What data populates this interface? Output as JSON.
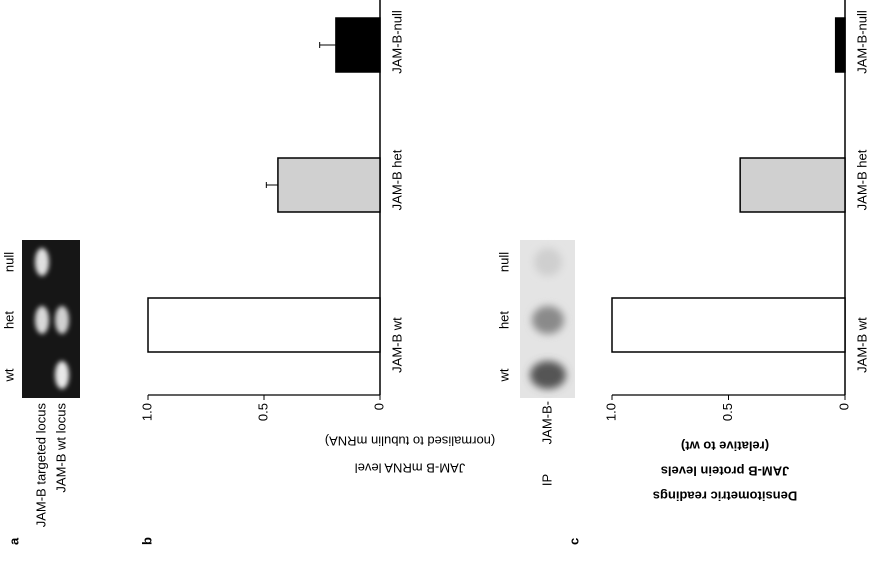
{
  "panel_labels": [
    "a",
    "b",
    "c"
  ],
  "gel_a": {
    "row_labels": [
      "JAM-B targeted locus",
      "JAM-B wt locus"
    ],
    "lane_labels": [
      "wt",
      "het",
      "null"
    ]
  },
  "gel_c": {
    "row_labels": [
      "IP",
      "JAM-B-"
    ],
    "lane_labels": [
      "wt",
      "het",
      "null"
    ]
  },
  "chart_data": [
    {
      "type": "bar",
      "ylabel": [
        "JAM-B mRNA level",
        "(normalised to tubulin mRNA)"
      ],
      "categories": [
        "JAM-B wt",
        "JAM-B het",
        "JAM-B-null"
      ],
      "values": [
        1,
        0.44,
        0.19
      ],
      "errors": [
        null,
        0.05,
        0.07
      ],
      "colors": [
        "#ffffff",
        "#d0d0d0",
        "#000000"
      ],
      "ylim": [
        0,
        1
      ],
      "yticks": [
        0,
        0.5,
        {
          "value": 1,
          "label": "1.0"
        }
      ]
    },
    {
      "type": "bar",
      "ylabel": [
        "Densitometric readings",
        "JAM-B protein levels",
        "(relative to wt)"
      ],
      "categories": [
        "JAM-B wt",
        "JAM-B het",
        "JAM-B-null"
      ],
      "values": [
        1,
        0.45,
        0.04
      ],
      "errors": [
        null,
        null,
        null
      ],
      "colors": [
        "#ffffff",
        "#d0d0d0",
        "#000000"
      ],
      "ylim": [
        0,
        1
      ],
      "yticks": [
        0,
        0.5,
        {
          "value": 1,
          "label": "1.0"
        }
      ]
    }
  ]
}
